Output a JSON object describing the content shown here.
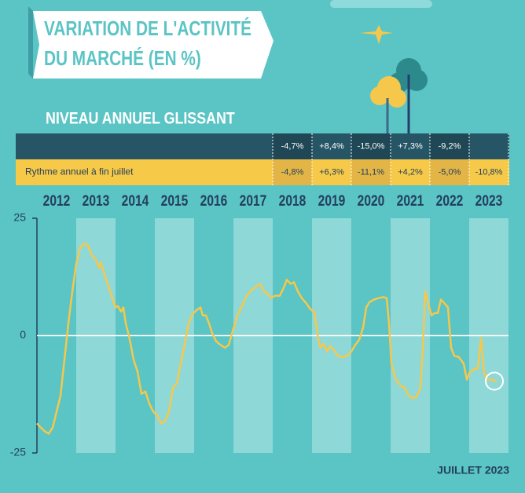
{
  "chart_data": {
    "type": "line",
    "title_lines": [
      "VARIATION DE L'ACTIVITÉ",
      "DU MARCHÉ (EN %)"
    ],
    "subtitle": "NIVEAU ANNUEL GLISSANT",
    "footnote": "JUILLET 2023",
    "table": {
      "rows": [
        {
          "cells": [
            "-4,7%",
            "+8,4%",
            "-15,0%",
            "+7,3%",
            "-9,2%"
          ]
        },
        {
          "label": "Rythme annuel à fin juillet",
          "cells": [
            "-4,8%",
            "+6,3%",
            "-11,1%",
            "+4,2%",
            "-5,0%",
            "-10,8%"
          ]
        }
      ]
    },
    "xlim": [
      2012,
      2024
    ],
    "xticks": [
      2012,
      2013,
      2014,
      2015,
      2016,
      2017,
      2018,
      2019,
      2020,
      2021,
      2022,
      2023
    ],
    "ylim": [
      -25,
      25
    ],
    "yticks": [
      -25,
      0,
      25
    ],
    "series": [
      {
        "color": "#f5c84c",
        "x": [
          2012.0,
          2012.1,
          2012.2,
          2012.3,
          2012.4,
          2012.5,
          2012.6,
          2012.7,
          2012.8,
          2012.9,
          2013.0,
          2013.1,
          2013.2,
          2013.3,
          2013.4,
          2013.5,
          2013.58,
          2013.62,
          2013.7,
          2013.8,
          2013.9,
          2014.0,
          2014.06,
          2014.14,
          2014.2,
          2014.26,
          2014.34,
          2014.46,
          2014.56,
          2014.66,
          2014.76,
          2014.86,
          2014.96,
          2015.06,
          2015.16,
          2015.26,
          2015.36,
          2015.46,
          2015.56,
          2015.66,
          2015.76,
          2015.86,
          2015.96,
          2016.06,
          2016.16,
          2016.22,
          2016.3,
          2016.38,
          2016.46,
          2016.56,
          2016.66,
          2016.78,
          2016.88,
          2016.98,
          2017.1,
          2017.22,
          2017.34,
          2017.46,
          2017.58,
          2017.68,
          2017.78,
          2017.86,
          2017.96,
          2018.06,
          2018.18,
          2018.28,
          2018.36,
          2018.46,
          2018.54,
          2018.64,
          2018.74,
          2018.86,
          2018.96,
          2019.06,
          2019.16,
          2019.22,
          2019.3,
          2019.38,
          2019.46,
          2019.56,
          2019.66,
          2019.78,
          2019.9,
          2020.0,
          2020.1,
          2020.2,
          2020.3,
          2020.38,
          2020.46,
          2020.58,
          2020.7,
          2020.82,
          2020.9,
          2020.96,
          2021.02,
          2021.14,
          2021.26,
          2021.36,
          2021.46,
          2021.56,
          2021.66,
          2021.76,
          2021.82,
          2021.88,
          2021.96,
          2022.04,
          2022.12,
          2022.2,
          2022.28,
          2022.38,
          2022.46,
          2022.54,
          2022.62,
          2022.74,
          2022.86,
          2022.94,
          2023.02,
          2023.14,
          2023.22,
          2023.3,
          2023.38,
          2023.46,
          2023.58,
          2023.7
        ],
        "values": [
          -18.7,
          -19.6,
          -20.4,
          -20.9,
          -19.6,
          -16.2,
          -12.8,
          -5.1,
          2.6,
          9.4,
          15.3,
          18.7,
          19.6,
          19.2,
          17,
          16.2,
          14.5,
          15.6,
          13.6,
          11,
          8.5,
          6,
          6.3,
          5.1,
          6,
          2.6,
          0,
          -5.1,
          -7.7,
          -12.4,
          -11.9,
          -14.5,
          -16.2,
          -17,
          -18.7,
          -18.2,
          -16.2,
          -11.1,
          -10.2,
          -6,
          -1.7,
          2.6,
          4.6,
          5.4,
          6,
          4.3,
          4.3,
          2.6,
          0.5,
          -1.2,
          -1.9,
          -2.6,
          -2,
          0.9,
          4.3,
          6.3,
          8.5,
          9.7,
          10.4,
          11,
          9.4,
          9,
          8,
          8.5,
          8.5,
          10.2,
          11.9,
          11,
          11.4,
          9.4,
          8,
          6.8,
          5.6,
          5.1,
          -0.9,
          -2.6,
          -1.7,
          -3.4,
          -2.2,
          -3.1,
          -4.3,
          -4.6,
          -4.3,
          -3.4,
          -2,
          -0.9,
          1.7,
          6,
          7.1,
          7.7,
          8,
          8.2,
          8,
          2.6,
          -6,
          -9.4,
          -10.7,
          -11.1,
          -12.8,
          -13.3,
          -13.1,
          -11.1,
          -2.6,
          9.4,
          6.8,
          4.3,
          4.8,
          4.8,
          7.7,
          6.8,
          6,
          -2.6,
          -4.3,
          -4.6,
          -6,
          -9.4,
          -7.7,
          -7.1,
          -7,
          -0.5,
          -8,
          -9.4,
          -9.4,
          -9.7
        ]
      }
    ]
  }
}
